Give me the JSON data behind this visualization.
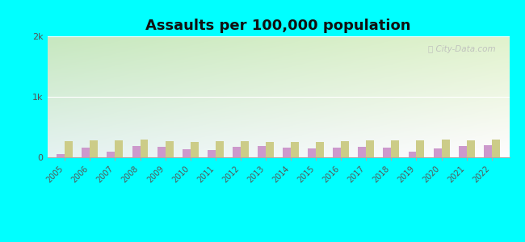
{
  "title": "Assaults per 100,000 population",
  "years": [
    2005,
    2006,
    2007,
    2008,
    2009,
    2010,
    2011,
    2012,
    2013,
    2014,
    2015,
    2016,
    2017,
    2018,
    2019,
    2020,
    2021,
    2022
  ],
  "chippewa_falls": [
    50,
    160,
    90,
    190,
    175,
    130,
    125,
    175,
    185,
    165,
    145,
    165,
    175,
    165,
    90,
    150,
    190,
    200
  ],
  "us_average": [
    270,
    280,
    275,
    295,
    270,
    260,
    265,
    265,
    260,
    255,
    255,
    265,
    280,
    280,
    285,
    290,
    285,
    295
  ],
  "chippewa_color": "#cc99cc",
  "us_color": "#cccc88",
  "background_color": "#00ffff",
  "ylim": [
    0,
    2000
  ],
  "yticks": [
    0,
    1000,
    2000
  ],
  "ytick_labels": [
    "0",
    "1k",
    "2k"
  ],
  "watermark": "⌕ City-Data.com",
  "bar_width": 0.32
}
